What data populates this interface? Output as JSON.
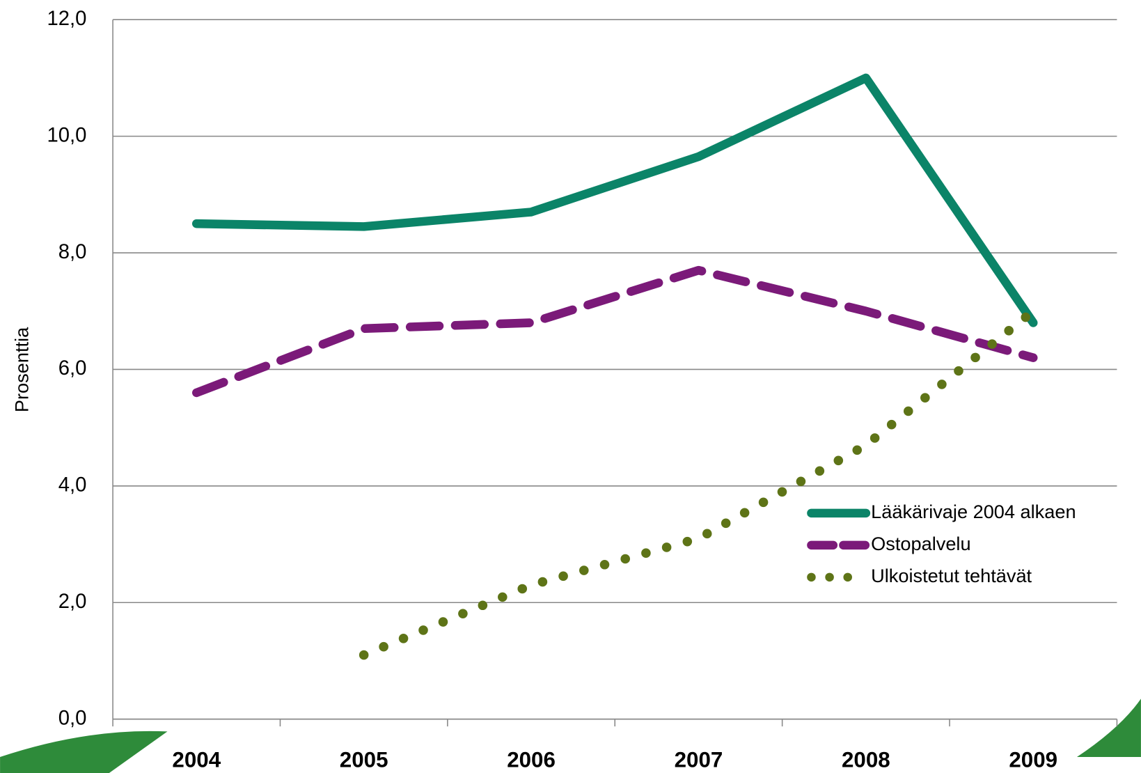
{
  "chart_data": {
    "type": "line",
    "y_label": "Prosenttia",
    "categories": [
      "2004",
      "2005",
      "2006",
      "2007",
      "2008",
      "2009"
    ],
    "series": [
      {
        "name": "Lääkärivaje 2004 alkaen",
        "color": "#0b8468",
        "style": "solid",
        "values": [
          8.5,
          8.45,
          8.7,
          9.65,
          11.0,
          6.8
        ]
      },
      {
        "name": "Ostopalvelu",
        "color": "#7b1a79",
        "style": "dashed",
        "values": [
          5.6,
          6.7,
          6.8,
          7.7,
          7.0,
          6.2
        ]
      },
      {
        "name": "Ulkoistetut tehtävät",
        "color": "#5e7417",
        "style": "dotted",
        "values": [
          null,
          1.1,
          2.3,
          3.1,
          4.7,
          7.0
        ]
      }
    ],
    "ylim": [
      0,
      12
    ],
    "yticks": [
      {
        "value": 0,
        "label": "0,0"
      },
      {
        "value": 2,
        "label": "2,0"
      },
      {
        "value": 4,
        "label": "4,0"
      },
      {
        "value": 6,
        "label": "6,0"
      },
      {
        "value": 8,
        "label": "8,0"
      },
      {
        "value": 10,
        "label": "10,0"
      },
      {
        "value": 12,
        "label": "12,0"
      }
    ],
    "grid": true,
    "legend": "lower right"
  }
}
